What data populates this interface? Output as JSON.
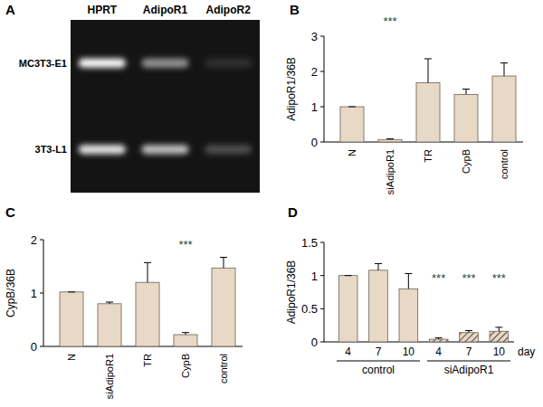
{
  "gel": {
    "title": "A",
    "lanes": [
      "HPRT",
      "AdipoR1",
      "AdipoR2"
    ],
    "rows": [
      "MC3T3-E1",
      "3T3-L1"
    ],
    "band_intensity": [
      [
        1,
        0.55,
        0.12
      ],
      [
        0.9,
        0.75,
        0.25
      ]
    ]
  },
  "chart_data": [
    {
      "type": "bar",
      "title": "B",
      "y_label": "AdipoR1/36B",
      "categories": [
        "N",
        "siAdipoR1",
        "TR",
        "CypB",
        "control"
      ],
      "values": [
        1,
        0.07,
        1.68,
        1.35,
        1.87
      ],
      "errors": [
        0,
        0.02,
        0.68,
        0.15,
        0.37
      ],
      "color": "#e8d9c6",
      "ylim": [
        0,
        3
      ],
      "yticks": [
        0,
        1,
        2,
        3
      ],
      "grid": false,
      "annotations": [
        {
          "text": "***",
          "index": 1
        }
      ]
    },
    {
      "type": "bar",
      "title": "C",
      "y_label": "CypB/36B",
      "categories": [
        "N",
        "siAdipoR1",
        "TR",
        "CypB",
        "control"
      ],
      "values": [
        1.02,
        0.8,
        1.2,
        0.22,
        1.47
      ],
      "errors": [
        0,
        0.03,
        0.37,
        0.04,
        0.2
      ],
      "color": "#e8d9c6",
      "ylim": [
        0,
        2
      ],
      "yticks": [
        0,
        1,
        2
      ],
      "grid": false,
      "annotations": [
        {
          "text": "***",
          "index": 3
        }
      ]
    },
    {
      "type": "bar",
      "title": "D",
      "y_label": "AdipoR1/36B",
      "x_label": "day",
      "categories": [
        "4",
        "7",
        "10",
        "4",
        "7",
        "10"
      ],
      "values": [
        1,
        1.08,
        0.8,
        0.04,
        0.14,
        0.16
      ],
      "errors": [
        0,
        0.1,
        0.23,
        0.02,
        0.03,
        0.06
      ],
      "color": "#e8d9c6",
      "colors": [
        "#e8d9c6",
        "#e8d9c6",
        "#e8d9c6",
        "#5a5048",
        "#5a5048",
        "#5a5048"
      ],
      "ylim": [
        0,
        1.5
      ],
      "yticks": [
        0,
        0.5,
        1,
        1.5
      ],
      "grid": false,
      "groups": [
        {
          "label": "control",
          "count": 3
        },
        {
          "label": "siAdipoR1",
          "count": 3
        }
      ],
      "annotations": [
        {
          "text": "***",
          "index": 3
        },
        {
          "text": "***",
          "index": 4
        },
        {
          "text": "***",
          "index": 5
        }
      ]
    }
  ]
}
